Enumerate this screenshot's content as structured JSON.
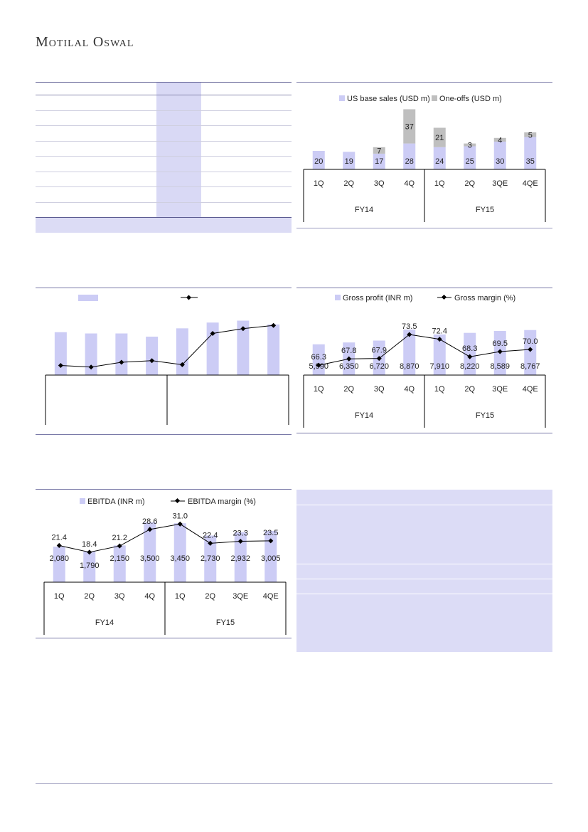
{
  "brand": {
    "name_first_cap": "M",
    "name_first_rest": "OTILAL",
    "name_second_cap": "O",
    "name_second_rest": "SWAL"
  },
  "colors": {
    "bar": "#ccccf5",
    "bar_dark": "#b8b8f0",
    "oneoff": "#bfbfbf",
    "line": "#000000",
    "rule": "#7a7aa8",
    "panel": "#d9d9f5"
  },
  "chart_data": [
    {
      "id": "us-sales",
      "type": "bar",
      "categories": [
        "1Q",
        "2Q",
        "3Q",
        "4Q",
        "1Q",
        "2Q",
        "3QE",
        "4QE"
      ],
      "groups": [
        {
          "label": "FY14",
          "count": 4
        },
        {
          "label": "FY15",
          "count": 4
        }
      ],
      "series": [
        {
          "name": "US base sales (USD m)",
          "values": [
            20,
            19,
            17,
            28,
            24,
            25,
            30,
            35
          ],
          "labels": [
            "20",
            "19",
            "17",
            "28",
            "24",
            "25",
            "30",
            "35"
          ]
        },
        {
          "name": "One-offs (USD m)",
          "values": [
            0,
            0,
            7,
            37,
            21,
            3,
            4,
            5
          ],
          "labels": [
            "",
            "",
            "7",
            "37",
            "21",
            "3",
            "4",
            "5"
          ]
        }
      ],
      "stacked": true
    },
    {
      "id": "blank-combo",
      "type": "bar",
      "categories": [
        "",
        "",
        "",
        "",
        "",
        "",
        "",
        ""
      ],
      "groups": [
        {
          "label": "",
          "count": 4
        },
        {
          "label": "",
          "count": 4
        }
      ],
      "bars": [
        67,
        65,
        65,
        60,
        73,
        82,
        85,
        79
      ],
      "line": [
        12,
        10,
        16,
        18,
        13,
        52,
        58,
        62
      ],
      "bar_max": 100,
      "line_max": 80
    },
    {
      "id": "gross-profit",
      "type": "bar",
      "categories": [
        "1Q",
        "2Q",
        "3Q",
        "4Q",
        "1Q",
        "2Q",
        "3QE",
        "4QE"
      ],
      "groups": [
        {
          "label": "FY14",
          "count": 4
        },
        {
          "label": "FY15",
          "count": 4
        }
      ],
      "bar_series": {
        "name": "Gross profit (INR m)",
        "values": [
          5990,
          6350,
          6720,
          8870,
          7910,
          8220,
          8589,
          8767
        ],
        "labels": [
          "5,990",
          "6,350",
          "6,720",
          "8,870",
          "7,910",
          "8,220",
          "8,589",
          "8,767"
        ]
      },
      "line_series": {
        "name": "Gross margin (%)",
        "values": [
          66.3,
          67.8,
          67.9,
          73.5,
          72.4,
          68.3,
          69.5,
          70.0
        ],
        "labels": [
          "66.3",
          "67.8",
          "67.9",
          "73.5",
          "72.4",
          "68.3",
          "69.5",
          "70.0"
        ]
      },
      "line_range": [
        64,
        74
      ]
    },
    {
      "id": "ebitda",
      "type": "bar",
      "categories": [
        "1Q",
        "2Q",
        "3Q",
        "4Q",
        "1Q",
        "2Q",
        "3QE",
        "4QE"
      ],
      "groups": [
        {
          "label": "FY14",
          "count": 4
        },
        {
          "label": "FY15",
          "count": 4
        }
      ],
      "bar_series": {
        "name": "EBITDA (INR m)",
        "values": [
          2080,
          1790,
          2150,
          3500,
          3450,
          2730,
          2932,
          3005
        ],
        "labels": [
          "2,080",
          "1,790",
          "2,150",
          "3,500",
          "3,450",
          "2,730",
          "2,932",
          "3,005"
        ]
      },
      "line_series": {
        "name": "EBITDA margin (%)",
        "values": [
          21.4,
          18.4,
          21.2,
          28.6,
          31.0,
          22.4,
          23.3,
          23.5
        ],
        "labels": [
          "21.4",
          "18.4",
          "21.2",
          "28.6",
          "31.0",
          "22.4",
          "23.3",
          "23.5"
        ]
      },
      "line_range": [
        5,
        33
      ]
    }
  ]
}
